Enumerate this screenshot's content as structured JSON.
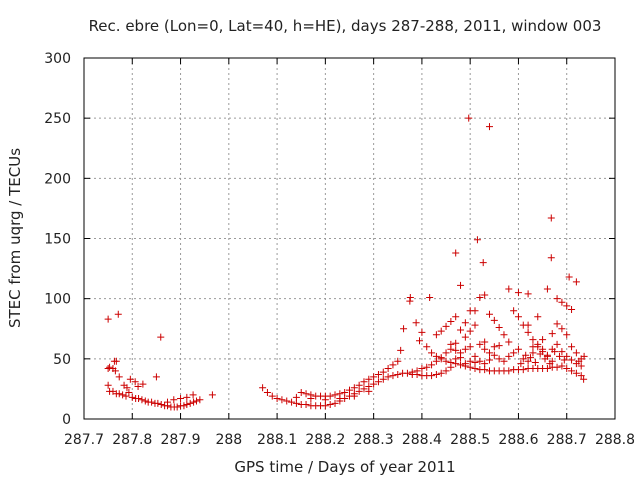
{
  "chart_data": {
    "type": "scatter",
    "title": "Rec. ebre (Lon=0, Lat=40, h=HE), days 287-288, 2011, window 003",
    "xlabel": "GPS time / Days of year 2011",
    "ylabel": "STEC from uqrg / TECUs",
    "xlim": [
      287.7,
      288.8
    ],
    "ylim": [
      0,
      300
    ],
    "x_ticks": [
      "287.7",
      "287.8",
      "287.9",
      "288",
      "288.1",
      "288.2",
      "288.3",
      "288.4",
      "288.5",
      "288.6",
      "288.7",
      "288.8"
    ],
    "y_ticks": [
      "0",
      "50",
      "100",
      "150",
      "200",
      "250",
      "300"
    ],
    "grid": true,
    "marker": "+",
    "color": "#cc0000",
    "points": [
      [
        287.75,
        83
      ],
      [
        287.771,
        87
      ],
      [
        287.859,
        68
      ],
      [
        287.75,
        42
      ],
      [
        287.753,
        43
      ],
      [
        287.76,
        42
      ],
      [
        287.763,
        48
      ],
      [
        287.767,
        48
      ],
      [
        287.765,
        40
      ],
      [
        287.773,
        35
      ],
      [
        287.783,
        28
      ],
      [
        287.789,
        26
      ],
      [
        287.796,
        33
      ],
      [
        287.806,
        31
      ],
      [
        287.812,
        27
      ],
      [
        287.822,
        29
      ],
      [
        287.85,
        35
      ],
      [
        287.75,
        28
      ],
      [
        287.753,
        23
      ],
      [
        287.76,
        23
      ],
      [
        287.767,
        21
      ],
      [
        287.773,
        21
      ],
      [
        287.78,
        20
      ],
      [
        287.787,
        19
      ],
      [
        287.793,
        22
      ],
      [
        287.8,
        18
      ],
      [
        287.807,
        17
      ],
      [
        287.813,
        17
      ],
      [
        287.82,
        16
      ],
      [
        287.827,
        15
      ],
      [
        287.833,
        14
      ],
      [
        287.84,
        14
      ],
      [
        287.847,
        13
      ],
      [
        287.853,
        13
      ],
      [
        287.86,
        12
      ],
      [
        287.867,
        11
      ],
      [
        287.873,
        11
      ],
      [
        287.88,
        10
      ],
      [
        287.887,
        10
      ],
      [
        287.893,
        10
      ],
      [
        287.9,
        11
      ],
      [
        287.907,
        11
      ],
      [
        287.913,
        12
      ],
      [
        287.92,
        13
      ],
      [
        287.927,
        14
      ],
      [
        287.933,
        15
      ],
      [
        287.94,
        16
      ],
      [
        287.873,
        14
      ],
      [
        287.886,
        16
      ],
      [
        287.9,
        17
      ],
      [
        287.913,
        18
      ],
      [
        287.926,
        20
      ],
      [
        287.966,
        20
      ],
      [
        288.07,
        26
      ],
      [
        288.08,
        22
      ],
      [
        288.09,
        19
      ],
      [
        288.1,
        17
      ],
      [
        288.11,
        16
      ],
      [
        288.12,
        15
      ],
      [
        288.13,
        14
      ],
      [
        288.14,
        13
      ],
      [
        288.15,
        12
      ],
      [
        288.16,
        12
      ],
      [
        288.17,
        11
      ],
      [
        288.18,
        11
      ],
      [
        288.19,
        11
      ],
      [
        288.2,
        11
      ],
      [
        288.21,
        12
      ],
      [
        288.22,
        13
      ],
      [
        288.23,
        15
      ],
      [
        288.24,
        17
      ],
      [
        288.25,
        19
      ],
      [
        288.26,
        21
      ],
      [
        288.27,
        23
      ],
      [
        288.28,
        25
      ],
      [
        288.29,
        27
      ],
      [
        288.3,
        29
      ],
      [
        288.31,
        31
      ],
      [
        288.32,
        33
      ],
      [
        288.33,
        35
      ],
      [
        288.34,
        36
      ],
      [
        288.35,
        37
      ],
      [
        288.15,
        22
      ],
      [
        288.16,
        21
      ],
      [
        288.17,
        20
      ],
      [
        288.18,
        19
      ],
      [
        288.19,
        19
      ],
      [
        288.2,
        19
      ],
      [
        288.21,
        19
      ],
      [
        288.22,
        20
      ],
      [
        288.23,
        21
      ],
      [
        288.24,
        22
      ],
      [
        288.25,
        24
      ],
      [
        288.26,
        26
      ],
      [
        288.27,
        28
      ],
      [
        288.28,
        31
      ],
      [
        288.29,
        33
      ],
      [
        288.3,
        35
      ],
      [
        288.31,
        37
      ],
      [
        288.32,
        39
      ],
      [
        288.33,
        42
      ],
      [
        288.34,
        45
      ],
      [
        288.35,
        48
      ],
      [
        288.14,
        18
      ],
      [
        288.17,
        17
      ],
      [
        288.2,
        16
      ],
      [
        288.23,
        17
      ],
      [
        288.26,
        19
      ],
      [
        288.29,
        23
      ],
      [
        288.36,
        38
      ],
      [
        288.37,
        38
      ],
      [
        288.38,
        37
      ],
      [
        288.39,
        37
      ],
      [
        288.4,
        36
      ],
      [
        288.41,
        36
      ],
      [
        288.42,
        36
      ],
      [
        288.43,
        37
      ],
      [
        288.44,
        38
      ],
      [
        288.45,
        40
      ],
      [
        288.46,
        43
      ],
      [
        288.47,
        46
      ],
      [
        288.48,
        45
      ],
      [
        288.49,
        44
      ],
      [
        288.5,
        43
      ],
      [
        288.51,
        42
      ],
      [
        288.52,
        41
      ],
      [
        288.53,
        41
      ],
      [
        288.54,
        40
      ],
      [
        288.55,
        40
      ],
      [
        288.56,
        40
      ],
      [
        288.57,
        40
      ],
      [
        288.58,
        40
      ],
      [
        288.59,
        41
      ],
      [
        288.6,
        41
      ],
      [
        288.61,
        41
      ],
      [
        288.62,
        42
      ],
      [
        288.63,
        42
      ],
      [
        288.64,
        42
      ],
      [
        288.65,
        42
      ],
      [
        288.66,
        42
      ],
      [
        288.67,
        43
      ],
      [
        288.68,
        43
      ],
      [
        288.69,
        44
      ],
      [
        288.7,
        42
      ],
      [
        288.71,
        40
      ],
      [
        288.72,
        38
      ],
      [
        288.73,
        36
      ],
      [
        288.735,
        33
      ],
      [
        288.375,
        98
      ],
      [
        288.376,
        101
      ],
      [
        288.416,
        101
      ],
      [
        288.47,
        138
      ],
      [
        288.48,
        111
      ],
      [
        288.497,
        250
      ],
      [
        288.515,
        149
      ],
      [
        288.527,
        130
      ],
      [
        288.54,
        243
      ],
      [
        288.668,
        167
      ],
      [
        288.668,
        134
      ],
      [
        288.58,
        108
      ],
      [
        288.6,
        105
      ],
      [
        288.62,
        104
      ],
      [
        288.66,
        108
      ],
      [
        288.69,
        97
      ],
      [
        288.705,
        118
      ],
      [
        288.72,
        114
      ],
      [
        288.7,
        94
      ],
      [
        288.71,
        91
      ],
      [
        288.68,
        100
      ],
      [
        288.53,
        103
      ],
      [
        288.52,
        101
      ],
      [
        288.51,
        90
      ],
      [
        288.5,
        90
      ],
      [
        288.49,
        80
      ],
      [
        288.48,
        74
      ],
      [
        288.47,
        63
      ],
      [
        288.46,
        58
      ],
      [
        288.45,
        55
      ],
      [
        288.44,
        51
      ],
      [
        288.43,
        48
      ],
      [
        288.42,
        45
      ],
      [
        288.41,
        43
      ],
      [
        288.4,
        42
      ],
      [
        288.39,
        40
      ],
      [
        288.38,
        39
      ],
      [
        288.43,
        70
      ],
      [
        288.44,
        73
      ],
      [
        288.45,
        77
      ],
      [
        288.46,
        81
      ],
      [
        288.47,
        85
      ],
      [
        288.49,
        68
      ],
      [
        288.5,
        73
      ],
      [
        288.51,
        78
      ],
      [
        288.52,
        62
      ],
      [
        288.53,
        58
      ],
      [
        288.54,
        87
      ],
      [
        288.55,
        82
      ],
      [
        288.56,
        76
      ],
      [
        288.57,
        70
      ],
      [
        288.58,
        64
      ],
      [
        288.59,
        90
      ],
      [
        288.6,
        85
      ],
      [
        288.61,
        78
      ],
      [
        288.62,
        72
      ],
      [
        288.63,
        66
      ],
      [
        288.64,
        60
      ],
      [
        288.65,
        56
      ],
      [
        288.66,
        52
      ],
      [
        288.67,
        48
      ],
      [
        288.68,
        79
      ],
      [
        288.69,
        75
      ],
      [
        288.7,
        70
      ],
      [
        288.71,
        60
      ],
      [
        288.72,
        55
      ],
      [
        288.73,
        50
      ],
      [
        288.41,
        60
      ],
      [
        288.42,
        55
      ],
      [
        288.43,
        52
      ],
      [
        288.44,
        50
      ],
      [
        288.45,
        48
      ],
      [
        288.46,
        47
      ],
      [
        288.47,
        50
      ],
      [
        288.48,
        55
      ],
      [
        288.49,
        58
      ],
      [
        288.5,
        60
      ],
      [
        288.51,
        52
      ],
      [
        288.52,
        48
      ],
      [
        288.53,
        46
      ],
      [
        288.54,
        55
      ],
      [
        288.55,
        60
      ],
      [
        288.56,
        50
      ],
      [
        288.57,
        48
      ],
      [
        288.58,
        52
      ],
      [
        288.59,
        55
      ],
      [
        288.6,
        58
      ],
      [
        288.61,
        50
      ],
      [
        288.62,
        48
      ],
      [
        288.63,
        55
      ],
      [
        288.64,
        62
      ],
      [
        288.65,
        58
      ],
      [
        288.66,
        53
      ],
      [
        288.67,
        58
      ],
      [
        288.68,
        62
      ],
      [
        288.69,
        56
      ],
      [
        288.7,
        52
      ],
      [
        288.71,
        49
      ],
      [
        288.72,
        46
      ],
      [
        288.73,
        44
      ],
      [
        288.736,
        52
      ],
      [
        288.725,
        48
      ],
      [
        288.62,
        78
      ],
      [
        288.64,
        85
      ],
      [
        288.63,
        60
      ],
      [
        288.65,
        66
      ],
      [
        288.67,
        71
      ],
      [
        288.56,
        61
      ],
      [
        288.55,
        53
      ],
      [
        288.54,
        49
      ],
      [
        288.53,
        64
      ],
      [
        288.5,
        48
      ],
      [
        288.48,
        51
      ],
      [
        288.46,
        62
      ],
      [
        288.47,
        57
      ],
      [
        288.49,
        46
      ],
      [
        288.51,
        47
      ],
      [
        288.4,
        72
      ],
      [
        288.395,
        65
      ],
      [
        288.388,
        80
      ],
      [
        288.356,
        57
      ],
      [
        288.362,
        75
      ],
      [
        288.605,
        46
      ],
      [
        288.615,
        53
      ],
      [
        288.625,
        51
      ],
      [
        288.635,
        47
      ],
      [
        288.645,
        54
      ],
      [
        288.655,
        50
      ],
      [
        288.665,
        46
      ],
      [
        288.675,
        56
      ],
      [
        288.685,
        52
      ],
      [
        288.695,
        49
      ]
    ]
  }
}
